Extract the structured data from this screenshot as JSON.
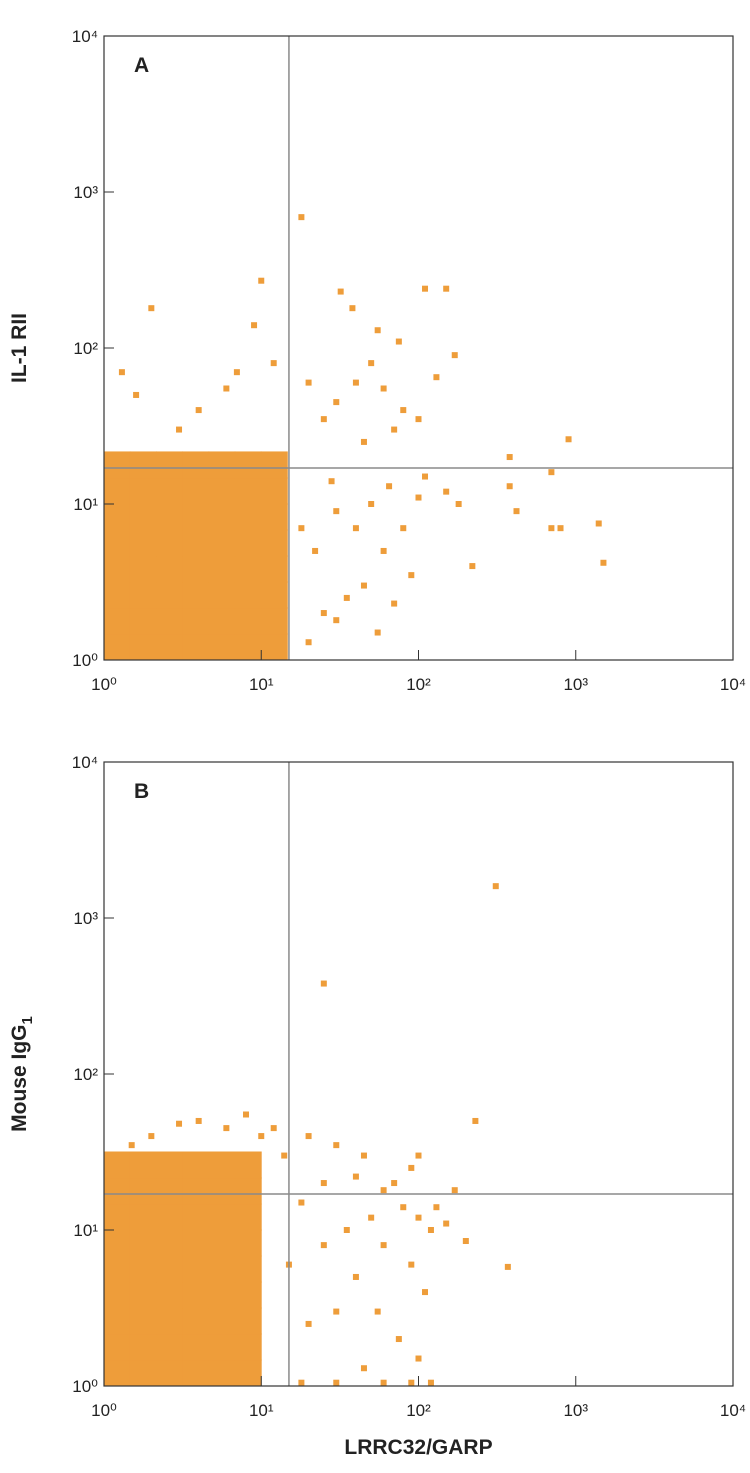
{
  "chart_data": [
    {
      "type": "scatter",
      "title": "A",
      "ylabel": "IL-1 RII",
      "log_x": true,
      "log_y": true,
      "xlim": [
        1,
        10000
      ],
      "ylim": [
        1,
        10000
      ],
      "xticks": [
        {
          "value": 1,
          "label": "10⁰"
        },
        {
          "value": 10,
          "label": "10¹"
        },
        {
          "value": 100,
          "label": "10²"
        },
        {
          "value": 1000,
          "label": "10³"
        },
        {
          "value": 10000,
          "label": "10⁴"
        }
      ],
      "yticks": [
        {
          "value": 1,
          "label": "10⁰"
        },
        {
          "value": 10,
          "label": "10¹"
        },
        {
          "value": 100,
          "label": "10²"
        },
        {
          "value": 1000,
          "label": "10³"
        },
        {
          "value": 10000,
          "label": "10⁴"
        }
      ],
      "quadrant_x": 15,
      "quadrant_y": 17,
      "quadrant_color": "#8a8a8a",
      "series": [
        {
          "color": "#ee9d3a",
          "marker_size": 27,
          "x": [
            1.21,
            1.78,
            2.61,
            3.83,
            5.62,
            8.26,
            12.1,
            1.21,
            1.78,
            2.61,
            3.83,
            5.62,
            8.26,
            12.1,
            1.21,
            1.78,
            2.61,
            3.83,
            5.62,
            8.26,
            12.1,
            1.21,
            1.78,
            2.61,
            3.83,
            5.62,
            8.26,
            12.1,
            1.21,
            1.78,
            2.61,
            3.83,
            5.62,
            8.26,
            12.1,
            1.21,
            1.78,
            2.61,
            3.83,
            5.62,
            8.26,
            12.1,
            1.21,
            1.78,
            2.61,
            3.83,
            5.62,
            8.26,
            12.1,
            1.21,
            1.78,
            2.61,
            3.83,
            5.62,
            8.26,
            12.1
          ],
          "values": [
            1.21,
            1.21,
            1.21,
            1.21,
            1.21,
            1.21,
            1.21,
            1.78,
            1.78,
            1.78,
            1.78,
            1.78,
            1.78,
            1.78,
            2.61,
            2.61,
            2.61,
            2.61,
            2.61,
            2.61,
            2.61,
            3.83,
            3.83,
            3.83,
            3.83,
            3.83,
            3.83,
            3.83,
            5.62,
            5.62,
            5.62,
            5.62,
            5.62,
            5.62,
            5.62,
            8.26,
            8.26,
            8.26,
            8.26,
            8.26,
            8.26,
            8.26,
            12.1,
            12.1,
            12.1,
            12.1,
            12.1,
            12.1,
            12.1,
            17.8,
            17.8,
            17.8,
            17.8,
            17.8,
            17.8,
            17.8
          ]
        },
        {
          "color": "#ee9d3a",
          "marker_size": 6,
          "x": [
            18,
            10,
            2,
            9,
            32,
            38,
            110,
            150,
            55,
            75,
            170,
            130,
            50,
            40,
            60,
            30,
            80,
            70,
            100,
            45,
            25,
            20,
            12,
            7,
            6,
            4,
            3,
            1.3,
            1.6,
            900,
            380,
            700,
            420,
            380,
            700,
            800,
            1400,
            1500,
            220,
            150,
            180,
            100,
            80,
            50,
            40,
            30,
            60,
            90,
            45,
            35,
            25,
            70,
            55,
            20,
            30,
            22,
            18,
            65,
            110,
            28
          ],
          "values": [
            690,
            270,
            180,
            140,
            230,
            180,
            240,
            240,
            130,
            110,
            90,
            65,
            80,
            60,
            55,
            45,
            40,
            30,
            35,
            25,
            35,
            60,
            80,
            70,
            55,
            40,
            30,
            70,
            50,
            26,
            20,
            16,
            9,
            13,
            7,
            7,
            7.5,
            4.2,
            4,
            12,
            10,
            11,
            7,
            10,
            7,
            9,
            5,
            3.5,
            3,
            2.5,
            2,
            2.3,
            1.5,
            1.3,
            1.8,
            5,
            7,
            13,
            15,
            14
          ]
        }
      ]
    },
    {
      "type": "scatter",
      "title": "B",
      "ylabel": "Mouse IgG",
      "ylabel_sub": "1",
      "xlabel": "LRRC32/GARP",
      "log_x": true,
      "log_y": true,
      "xlim": [
        1,
        10000
      ],
      "ylim": [
        1,
        10000
      ],
      "xticks": [
        {
          "value": 1,
          "label": "10⁰"
        },
        {
          "value": 10,
          "label": "10¹"
        },
        {
          "value": 100,
          "label": "10²"
        },
        {
          "value": 1000,
          "label": "10³"
        },
        {
          "value": 10000,
          "label": "10⁴"
        }
      ],
      "yticks": [
        {
          "value": 1,
          "label": "10⁰"
        },
        {
          "value": 10,
          "label": "10¹"
        },
        {
          "value": 100,
          "label": "10²"
        },
        {
          "value": 1000,
          "label": "10³"
        },
        {
          "value": 10000,
          "label": "10⁴"
        }
      ],
      "quadrant_x": 15,
      "quadrant_y": 17,
      "quadrant_color": "#8a8a8a",
      "series": [
        {
          "color": "#ee9d3a",
          "marker_size": 27,
          "x": [
            1.21,
            1.78,
            2.61,
            3.83,
            5.62,
            8.26,
            1.21,
            1.78,
            2.61,
            3.83,
            5.62,
            8.26,
            1.21,
            1.78,
            2.61,
            3.83,
            5.62,
            8.26,
            1.21,
            1.78,
            2.61,
            3.83,
            5.62,
            8.26,
            1.21,
            1.78,
            2.61,
            3.83,
            5.62,
            8.26,
            1.21,
            1.78,
            2.61,
            3.83,
            5.62,
            8.26,
            1.21,
            1.78,
            2.61,
            3.83,
            5.62,
            8.26,
            1.21,
            1.78,
            2.61,
            3.83,
            5.62,
            8.26,
            1.21,
            1.78,
            2.61,
            3.83,
            5.62,
            8.26
          ],
          "values": [
            1.21,
            1.21,
            1.21,
            1.21,
            1.21,
            1.21,
            1.78,
            1.78,
            1.78,
            1.78,
            1.78,
            1.78,
            2.61,
            2.61,
            2.61,
            2.61,
            2.61,
            2.61,
            3.83,
            3.83,
            3.83,
            3.83,
            3.83,
            3.83,
            5.62,
            5.62,
            5.62,
            5.62,
            5.62,
            5.62,
            8.26,
            8.26,
            8.26,
            8.26,
            8.26,
            8.26,
            12.1,
            12.1,
            12.1,
            12.1,
            12.1,
            12.1,
            17.8,
            17.8,
            17.8,
            17.8,
            17.8,
            17.8,
            26.1,
            26.1,
            26.1,
            26.1,
            26.1,
            26.1
          ]
        },
        {
          "color": "#ee9d3a",
          "marker_size": 6,
          "x": [
            310,
            25,
            230,
            370,
            200,
            150,
            100,
            90,
            170,
            130,
            60,
            40,
            30,
            20,
            45,
            70,
            80,
            100,
            120,
            50,
            35,
            25,
            60,
            90,
            110,
            40,
            30,
            55,
            20,
            75,
            100,
            45,
            120,
            90,
            60,
            30,
            18,
            12,
            14,
            10,
            8,
            6,
            4,
            3,
            2,
            1.5,
            18,
            25,
            15
          ],
          "values": [
            1600,
            380,
            50,
            5.8,
            8.5,
            11,
            30,
            25,
            18,
            14,
            18,
            22,
            35,
            40,
            30,
            20,
            14,
            12,
            10,
            12,
            10,
            8,
            8,
            6,
            4,
            5,
            3,
            3,
            2.5,
            2,
            1.5,
            1.3,
            1.05,
            1.05,
            1.05,
            1.05,
            1.05,
            45,
            30,
            40,
            55,
            45,
            50,
            48,
            40,
            35,
            15,
            20,
            6
          ]
        }
      ]
    }
  ]
}
